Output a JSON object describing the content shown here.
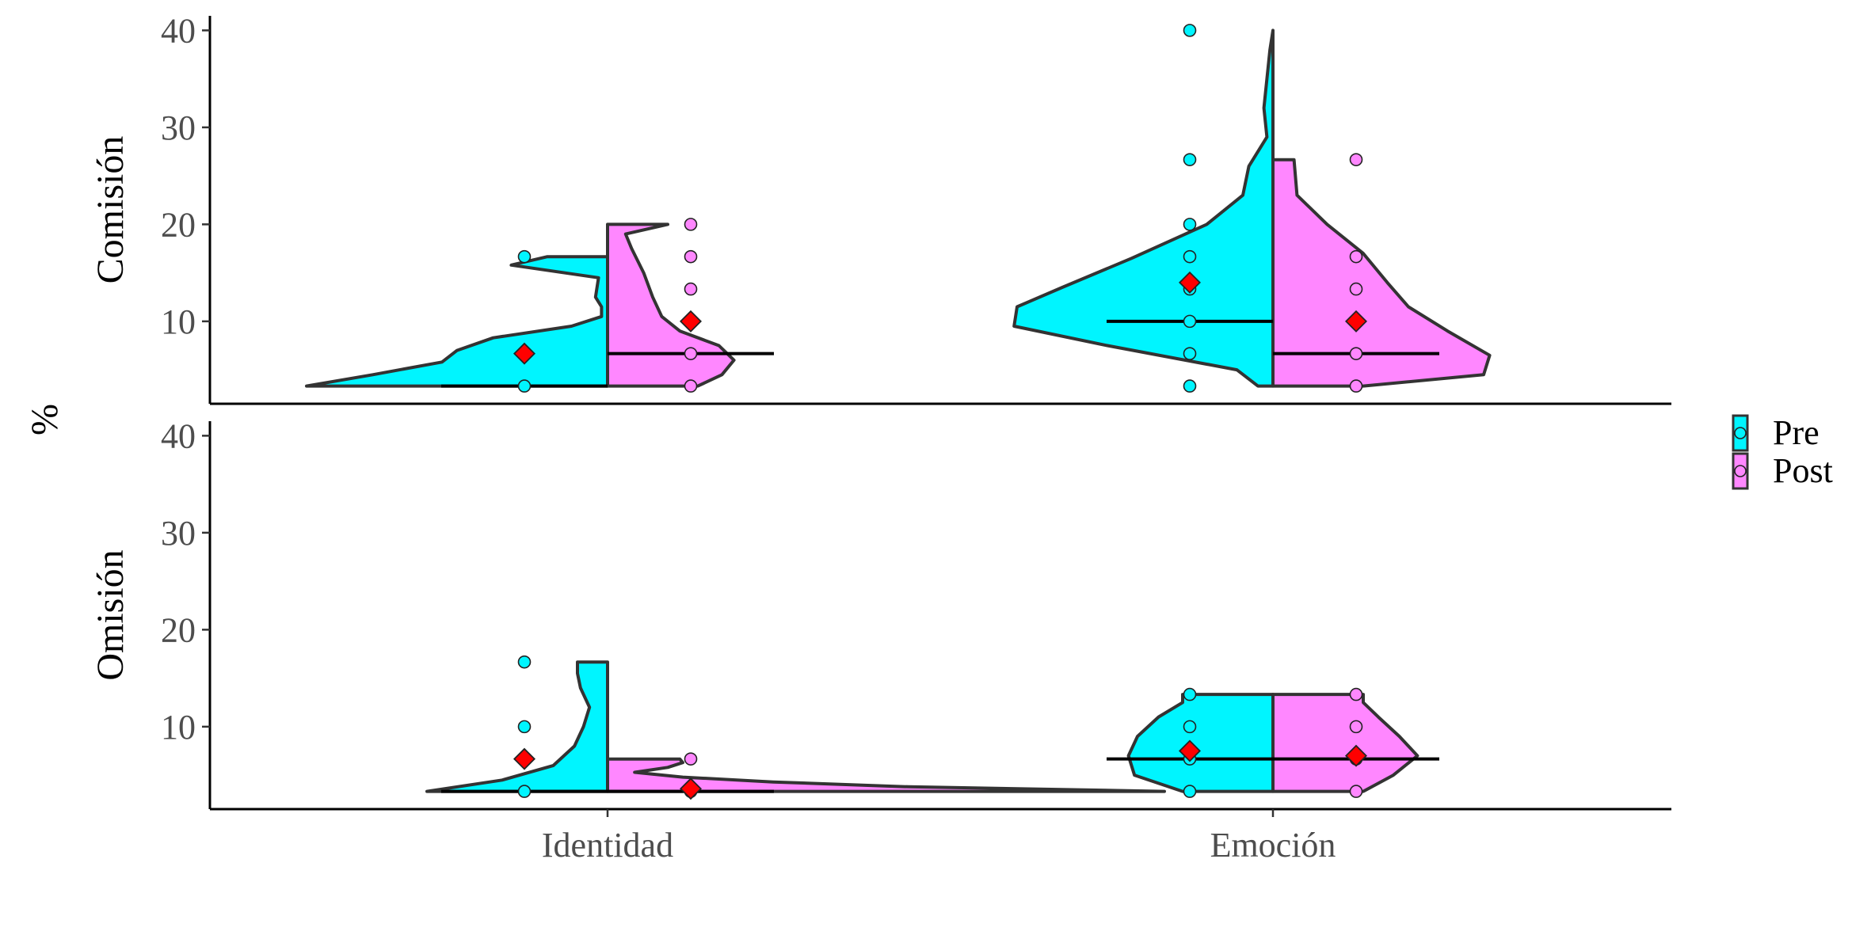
{
  "chart_data": {
    "type": "violin",
    "y_axis_title": "%",
    "categories": [
      "Identidad",
      "Emoción"
    ],
    "ylim": [
      1.5,
      41.5
    ],
    "yticks": [
      10,
      20,
      30,
      40
    ],
    "grid": false,
    "legend_position": "right",
    "colors": {
      "Pre": "#00f5ff",
      "Post": "#ff87ff",
      "mean_marker": "#ff0000",
      "outline": "#333333"
    },
    "legend": [
      {
        "name": "Pre",
        "color": "#00f5ff"
      },
      {
        "name": "Post",
        "color": "#ff87ff"
      }
    ],
    "panels": [
      {
        "label": "Comisión",
        "groups": [
          {
            "category": "Identidad",
            "pre": {
              "points": [
                3.33,
                16.67
              ],
              "mean": 6.67,
              "median": 3.33,
              "range": [
                3.33,
                16.67
              ],
              "density": [
                [
                  3.33,
                  1.0
                ],
                [
                  4.5,
                  0.78
                ],
                [
                  5.8,
                  0.55
                ],
                [
                  7.0,
                  0.5
                ],
                [
                  8.3,
                  0.38
                ],
                [
                  9.5,
                  0.12
                ],
                [
                  10.5,
                  0.02
                ],
                [
                  11.5,
                  0.02
                ],
                [
                  12.5,
                  0.04
                ],
                [
                  14.5,
                  0.03
                ],
                [
                  15.8,
                  0.32
                ],
                [
                  16.67,
                  0.2
                ]
              ]
            },
            "post": {
              "points": [
                3.33,
                6.67,
                13.33,
                16.67,
                20.0
              ],
              "mean": 10.0,
              "median": 6.67,
              "range": [
                3.33,
                20.0
              ],
              "density": [
                [
                  3.33,
                  0.3
                ],
                [
                  4.5,
                  0.38
                ],
                [
                  6.0,
                  0.42
                ],
                [
                  7.5,
                  0.37
                ],
                [
                  9.0,
                  0.24
                ],
                [
                  10.5,
                  0.18
                ],
                [
                  12.5,
                  0.15
                ],
                [
                  15.0,
                  0.12
                ],
                [
                  17.5,
                  0.08
                ],
                [
                  19.0,
                  0.06
                ],
                [
                  20.0,
                  0.2
                ]
              ]
            }
          },
          {
            "category": "Emoción",
            "pre": {
              "points": [
                3.33,
                6.67,
                10.0,
                13.33,
                16.67,
                20.0,
                26.67,
                40.0
              ],
              "mean": 14.0,
              "median": 10.0,
              "range": [
                3.33,
                40.0
              ],
              "density": [
                [
                  3.33,
                  0.05
                ],
                [
                  5.0,
                  0.12
                ],
                [
                  7.5,
                  0.55
                ],
                [
                  9.5,
                  0.86
                ],
                [
                  11.5,
                  0.85
                ],
                [
                  13.5,
                  0.7
                ],
                [
                  16.5,
                  0.47
                ],
                [
                  20.0,
                  0.22
                ],
                [
                  23.0,
                  0.1
                ],
                [
                  26.0,
                  0.08
                ],
                [
                  29.0,
                  0.02
                ],
                [
                  32.0,
                  0.03
                ],
                [
                  35.0,
                  0.02
                ],
                [
                  38.0,
                  0.01
                ],
                [
                  40.0,
                  0.0
                ]
              ]
            },
            "post": {
              "points": [
                3.33,
                6.67,
                13.33,
                16.67,
                26.67
              ],
              "mean": 10.0,
              "median": 6.67,
              "range": [
                3.33,
                26.67
              ],
              "density": [
                [
                  3.33,
                  0.3
                ],
                [
                  4.5,
                  0.7
                ],
                [
                  6.5,
                  0.72
                ],
                [
                  9.0,
                  0.58
                ],
                [
                  11.5,
                  0.45
                ],
                [
                  14.0,
                  0.38
                ],
                [
                  17.0,
                  0.3
                ],
                [
                  20.0,
                  0.18
                ],
                [
                  23.0,
                  0.08
                ],
                [
                  26.67,
                  0.07
                ]
              ]
            }
          }
        ]
      },
      {
        "label": "Omisión",
        "groups": [
          {
            "category": "Identidad",
            "pre": {
              "points": [
                3.33,
                10.0,
                16.67
              ],
              "mean": 6.67,
              "median": 3.33,
              "range": [
                3.33,
                16.67
              ],
              "density": [
                [
                  3.33,
                  0.6
                ],
                [
                  4.5,
                  0.35
                ],
                [
                  6.0,
                  0.18
                ],
                [
                  8.0,
                  0.11
                ],
                [
                  10.0,
                  0.08
                ],
                [
                  12.0,
                  0.06
                ],
                [
                  14.0,
                  0.09
                ],
                [
                  15.5,
                  0.1
                ],
                [
                  16.67,
                  0.1
                ]
              ]
            },
            "post": {
              "points": [
                3.33,
                6.67
              ],
              "mean": 3.6,
              "median": 3.33,
              "range": [
                3.33,
                6.67
              ],
              "density": [
                [
                  3.33,
                  1.85
                ],
                [
                  3.8,
                  1.0
                ],
                [
                  4.3,
                  0.55
                ],
                [
                  4.8,
                  0.25
                ],
                [
                  5.3,
                  0.09
                ],
                [
                  5.8,
                  0.2
                ],
                [
                  6.3,
                  0.25
                ],
                [
                  6.67,
                  0.24
                ]
              ]
            }
          },
          {
            "category": "Emoción",
            "pre": {
              "points": [
                3.33,
                6.67,
                10.0,
                13.33
              ],
              "mean": 7.5,
              "median": 6.67,
              "range": [
                3.33,
                13.33
              ],
              "density": [
                [
                  3.33,
                  0.3
                ],
                [
                  5.0,
                  0.46
                ],
                [
                  7.0,
                  0.48
                ],
                [
                  9.0,
                  0.45
                ],
                [
                  11.0,
                  0.38
                ],
                [
                  12.5,
                  0.3
                ],
                [
                  13.33,
                  0.3
                ]
              ]
            },
            "post": {
              "points": [
                3.33,
                6.67,
                10.0,
                13.33
              ],
              "mean": 7.0,
              "median": 6.67,
              "range": [
                3.33,
                13.33
              ],
              "density": [
                [
                  3.33,
                  0.3
                ],
                [
                  5.0,
                  0.4
                ],
                [
                  7.0,
                  0.48
                ],
                [
                  9.0,
                  0.42
                ],
                [
                  11.0,
                  0.35
                ],
                [
                  12.5,
                  0.3
                ],
                [
                  13.33,
                  0.3
                ]
              ]
            }
          }
        ]
      }
    ]
  }
}
